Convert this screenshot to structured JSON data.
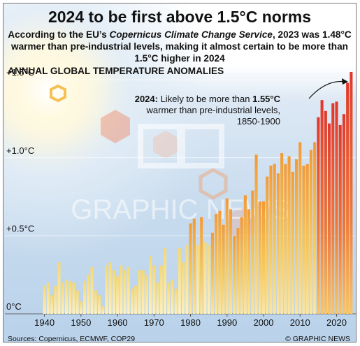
{
  "header": {
    "title": "2024 to be first above 1.5°C norms",
    "subtitle_pre": "According to the EU’s ",
    "subtitle_em": "Copernicus Climate Change Service",
    "subtitle_post": ", 2023 was 1.48°C warmer than pre-industrial levels, making it almost certain to be more than 1.5°C higher in 2024"
  },
  "annotation": {
    "year": "2024:",
    "line1": " Likely to be more than ",
    "value": "1.55°C",
    "line2": " warmer than pre-industrial levels, 1850-1900"
  },
  "watermark": "GRAPHIC NEWS",
  "footer": {
    "source": "Sources: Copernicus, ECMWF, COP29",
    "credit": "© GRAPHIC NEWS"
  },
  "colors": {
    "bar_top": "#f7e27a",
    "bar_bottom_light": "#fbe9a0",
    "bar_hot": "#e8452a",
    "axis_text": "#111111"
  },
  "chart_data": {
    "type": "bar",
    "title": "ANNUAL GLOBAL TEMPERATURE ANOMALIES",
    "y_tick_labels": [
      "0°C",
      "+0.5°C",
      "+1.0°C",
      "+1.5°C"
    ],
    "y_ticks": [
      0,
      0.5,
      1.0,
      1.5
    ],
    "ylim": [
      0,
      1.55
    ],
    "x_tick_labels": [
      "1940",
      "1950",
      "1960",
      "1970",
      "1980",
      "1990",
      "2000",
      "2010",
      "2020"
    ],
    "x_ticks": [
      1940,
      1950,
      1960,
      1970,
      1980,
      1990,
      2000,
      2010,
      2020
    ],
    "grid": true,
    "categories": [
      1940,
      1941,
      1942,
      1943,
      1944,
      1945,
      1946,
      1947,
      1948,
      1949,
      1950,
      1951,
      1952,
      1953,
      1954,
      1955,
      1956,
      1957,
      1958,
      1959,
      1960,
      1961,
      1962,
      1963,
      1964,
      1965,
      1966,
      1967,
      1968,
      1969,
      1970,
      1971,
      1972,
      1973,
      1974,
      1975,
      1976,
      1977,
      1978,
      1979,
      1980,
      1981,
      1982,
      1983,
      1984,
      1985,
      1986,
      1987,
      1988,
      1989,
      1990,
      1991,
      1992,
      1993,
      1994,
      1995,
      1996,
      1997,
      1998,
      1999,
      2000,
      2001,
      2002,
      2003,
      2004,
      2005,
      2006,
      2007,
      2008,
      2009,
      2010,
      2011,
      2012,
      2013,
      2014,
      2015,
      2016,
      2017,
      2018,
      2019,
      2020,
      2021,
      2022,
      2023,
      2024
    ],
    "values": [
      0.18,
      0.2,
      0.12,
      0.18,
      0.33,
      0.2,
      0.22,
      0.21,
      0.2,
      0.15,
      0.08,
      0.21,
      0.25,
      0.3,
      0.15,
      0.12,
      0.05,
      0.31,
      0.33,
      0.28,
      0.24,
      0.31,
      0.28,
      0.3,
      0.16,
      0.18,
      0.28,
      0.28,
      0.25,
      0.37,
      0.31,
      0.2,
      0.31,
      0.42,
      0.2,
      0.22,
      0.16,
      0.42,
      0.33,
      0.44,
      0.58,
      0.61,
      0.44,
      0.62,
      0.46,
      0.44,
      0.52,
      0.64,
      0.66,
      0.57,
      0.74,
      0.67,
      0.5,
      0.55,
      0.62,
      0.76,
      0.67,
      0.79,
      1.02,
      0.72,
      0.72,
      0.88,
      0.95,
      0.96,
      0.9,
      1.03,
      0.96,
      1.01,
      0.91,
      0.99,
      1.1,
      0.95,
      0.96,
      1.05,
      1.1,
      1.26,
      1.37,
      1.3,
      1.22,
      1.35,
      1.36,
      1.21,
      1.28,
      1.48,
      1.55
    ]
  }
}
